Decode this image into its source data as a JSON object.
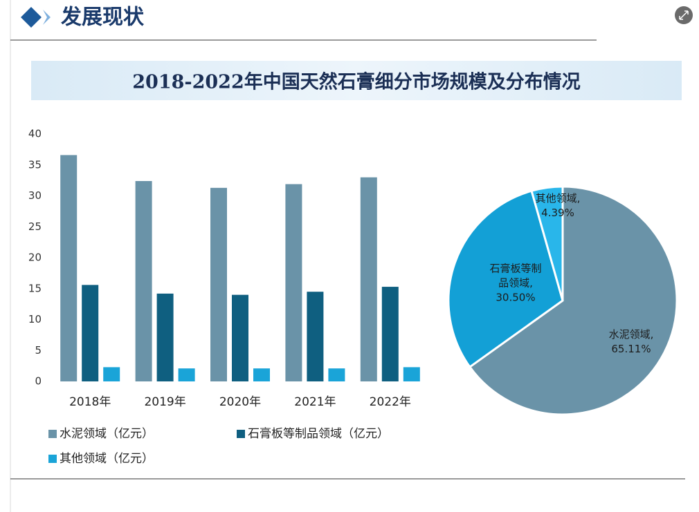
{
  "header": {
    "title": "发展现状",
    "chart_title": "2018-2022年中国天然石膏细分市场规模及分布情况"
  },
  "chart_data": [
    {
      "type": "bar",
      "categories": [
        "2018年",
        "2019年",
        "2020年",
        "2021年",
        "2022年"
      ],
      "series": [
        {
          "name": "水泥领域（亿元）",
          "color": "#6a93a8",
          "values": [
            36.6,
            32.4,
            31.3,
            31.9,
            33.0
          ]
        },
        {
          "name": "石膏板等制品领域（亿元）",
          "color": "#0f5f80",
          "values": [
            15.6,
            14.2,
            14.0,
            14.5,
            15.3
          ]
        },
        {
          "name": "其他领域（亿元）",
          "color": "#1aa4d8",
          "values": [
            2.3,
            2.1,
            2.1,
            2.1,
            2.3
          ]
        }
      ],
      "ylim": [
        0,
        40
      ],
      "yticks": [
        0,
        5,
        10,
        15,
        20,
        25,
        30,
        35,
        40
      ],
      "grid": false,
      "legend": "bottom"
    },
    {
      "type": "pie",
      "categories": [
        "水泥领域,",
        "石膏板等制品领域,",
        "其他领域,"
      ],
      "values": [
        65.11,
        30.5,
        4.39
      ],
      "value_labels": [
        "65.11%",
        "30.50%",
        "4.39%"
      ],
      "colors": [
        "#6a93a8",
        "#13a0d6",
        "#29b6ea"
      ]
    }
  ]
}
